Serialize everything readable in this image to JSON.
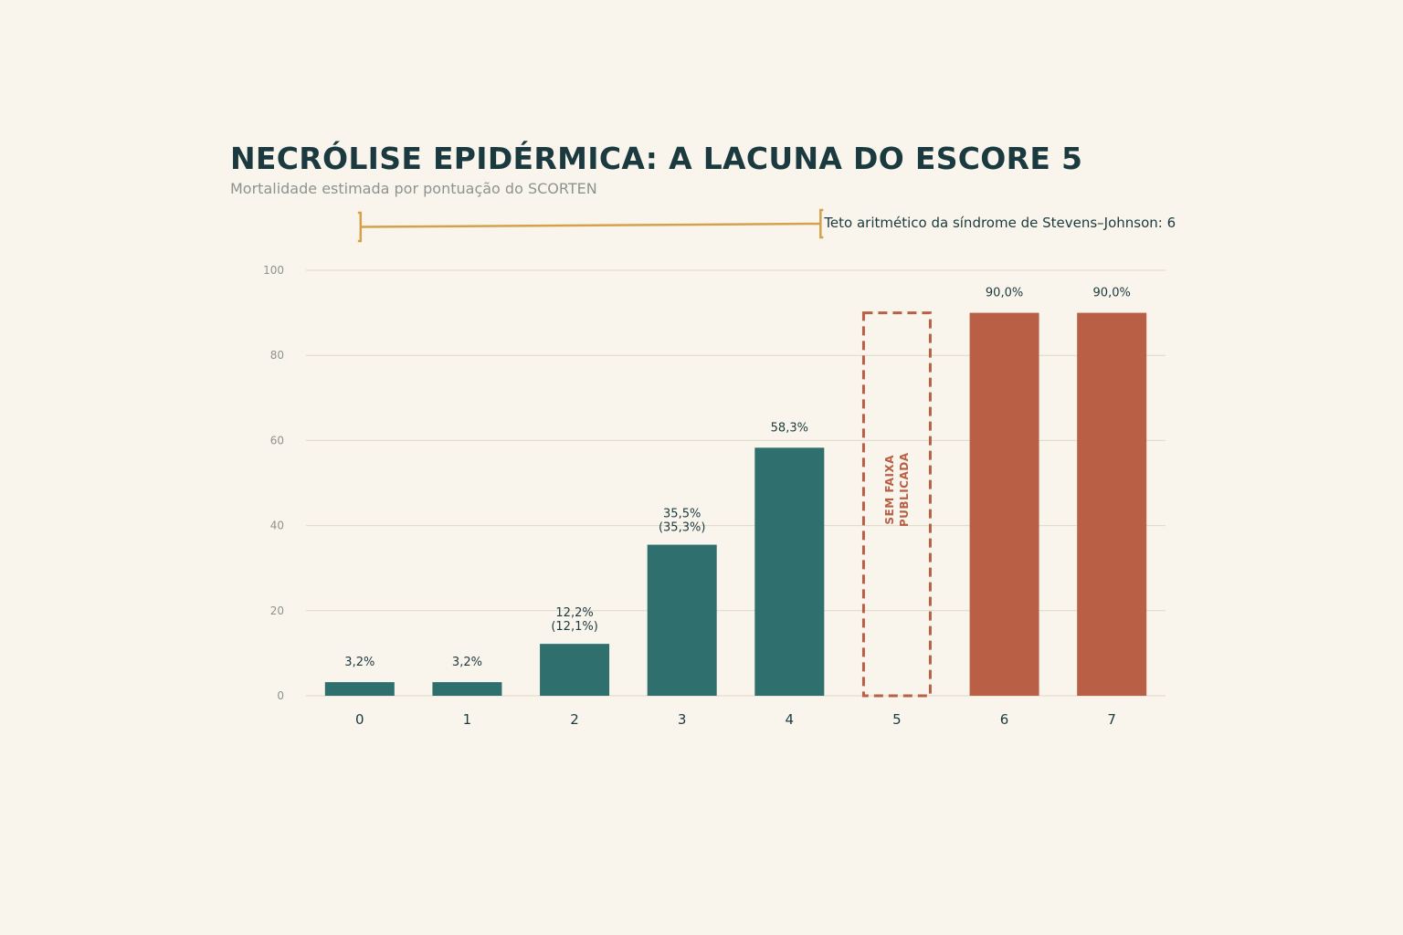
{
  "title": "NECRÓLISE EPIDÉRMICA: A LACUNA DO ESCORE 5",
  "subtitle": "Mortalidade estimada por pontuação do SCORTEN",
  "colors": {
    "background": "#f9f5ec",
    "low_bar": "#2f6f6d",
    "high_bar": "#b95f45",
    "gap_outline": "#b95f45",
    "bracket": "#d3a24a",
    "grid": "#ded8c6",
    "text_dark": "#1b3a3f",
    "text_muted": "#8d938e"
  },
  "chart_data": {
    "type": "bar",
    "categories": [
      "0",
      "1",
      "2",
      "3",
      "4",
      "5",
      "6",
      "7"
    ],
    "values": [
      3.2,
      3.2,
      12.2,
      35.5,
      58.3,
      null,
      90.0,
      90.0
    ],
    "value_labels": [
      "3,2%",
      "3,2%",
      "12,2%",
      "35,5%",
      "58,3%",
      "",
      "90,0%",
      "90,0%"
    ],
    "secondary_labels": [
      "",
      "",
      "(12,1%)",
      "(35,3%)",
      "",
      "",
      "",
      ""
    ],
    "bar_groups": [
      "low",
      "low",
      "low",
      "low",
      "low",
      "gap",
      "high",
      "high"
    ],
    "gap": {
      "category": "5",
      "outline_value": 90.0,
      "label_lines": [
        "SEM FAIXA",
        "PUBLICADA"
      ]
    },
    "yticks": [
      0,
      20,
      40,
      60,
      80,
      100
    ],
    "ylim": [
      0,
      100
    ],
    "grid": true,
    "annotation": {
      "text": "Teto aritmético da síndrome de Stevens–Johnson: 6",
      "from_category": "0",
      "to_category": "4"
    }
  }
}
